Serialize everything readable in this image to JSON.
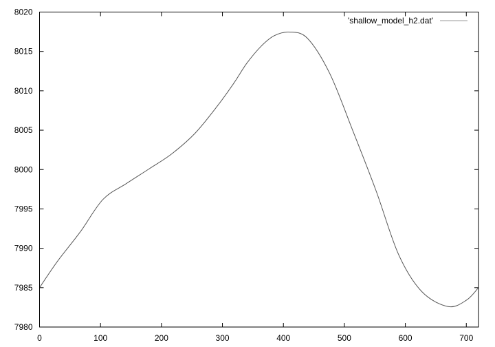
{
  "chart_data": {
    "type": "line",
    "title": "",
    "xlabel": "",
    "ylabel": "",
    "xlim": [
      0,
      720
    ],
    "ylim": [
      7980,
      8020
    ],
    "grid": false,
    "legend_position": "top-right",
    "x_ticks": [
      "0",
      "100",
      "200",
      "300",
      "400",
      "500",
      "600",
      "700"
    ],
    "y_ticks": [
      "7980",
      "7985",
      "7990",
      "7995",
      "8000",
      "8005",
      "8010",
      "8015",
      "8020"
    ],
    "series": [
      {
        "name": "'shallow_model_h2.dat'",
        "color": "#555555",
        "x": [
          0,
          29,
          67,
          104,
          142,
          180,
          217,
          255,
          292,
          319,
          340,
          364,
          385,
          409,
          439,
          476,
          514,
          552,
          589,
          627,
          670,
          700,
          720
        ],
        "y": [
          7985,
          7988.3,
          7992.1,
          7996.2,
          7998.2,
          8000.1,
          8002.0,
          8004.6,
          8008.1,
          8011.0,
          8013.5,
          8015.7,
          8017.0,
          8017.45,
          8016.7,
          8012.2,
          8004.9,
          7997.3,
          7989.2,
          7984.5,
          7982.6,
          7983.4,
          7985
        ]
      }
    ]
  }
}
